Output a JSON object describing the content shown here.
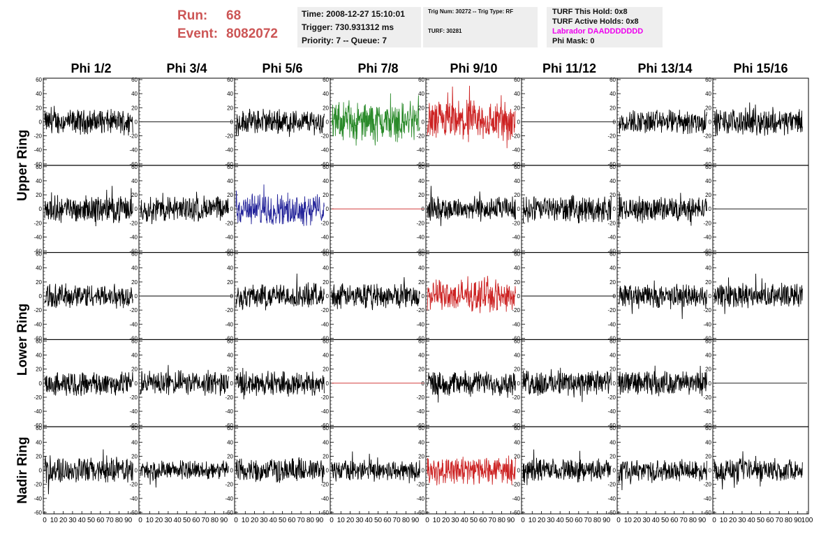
{
  "header": {
    "run_label": "Run:",
    "run_value": "68",
    "event_label": "Event:",
    "event_value": "8082072",
    "time_line": "Time: 2008-12-27 15:10:01",
    "trigger_line": "Trigger: 730.931312 ms",
    "priority_line": "Priority: 7 -- Queue: 7",
    "trig_line": "Trig Num: 30272 -- Trig Type: RF",
    "turf_line": "TURF: 30281",
    "turf_hold_line": "TURF This Hold: 0x8",
    "turf_active_line": "TURF Active Holds: 0x8",
    "labrador_line": "Labrador DAADDDDDDD",
    "phi_mask_line": "Phi Mask: 0"
  },
  "colors": {
    "run_text": "#cc5555",
    "labrador_text": "#ee00ee",
    "info_bg": "#eeeeee",
    "trace_black": "#000000",
    "trace_green": "#2a8a2a",
    "trace_red": "#cc2222",
    "trace_blue": "#222299"
  },
  "chart_data": {
    "type": "line",
    "columns": [
      "Phi 1/2",
      "Phi 3/4",
      "Phi 5/6",
      "Phi 7/8",
      "Phi 9/10",
      "Phi 11/12",
      "Phi 13/14",
      "Phi 15/16"
    ],
    "row_groups": [
      "Upper Ring",
      "Lower Ring",
      "Nadir Ring"
    ],
    "rows": 5,
    "ylim": [
      -60,
      60
    ],
    "y_ticks": [
      -60,
      -40,
      -20,
      0,
      20,
      40,
      60
    ],
    "xlim": [
      0,
      100
    ],
    "x_tick_labels": [
      "0",
      "10",
      "20",
      "30",
      "40",
      "50",
      "60",
      "70",
      "80",
      "90",
      "100"
    ],
    "samples_per_trace": 260,
    "x_max_data": 95,
    "panels": [
      [
        "noise",
        "flat",
        "noise",
        "green",
        "red",
        "flat",
        "noise",
        "noise"
      ],
      [
        "noise",
        "noise",
        "blue",
        "flatred",
        "noise",
        "noise",
        "noise",
        "flat"
      ],
      [
        "noise",
        "flat",
        "noise",
        "noise",
        "red",
        "flat",
        "noise",
        "noise"
      ],
      [
        "noise",
        "noise",
        "noise",
        "flatred",
        "noise",
        "noise",
        "noise",
        "flat"
      ],
      [
        "noise",
        "noise",
        "noise",
        "noise",
        "red",
        "noise",
        "noise",
        "noise"
      ]
    ],
    "amplitudes": [
      [
        14,
        0,
        14,
        22,
        24,
        0,
        14,
        15
      ],
      [
        15,
        15,
        18,
        0,
        14,
        15,
        14,
        0
      ],
      [
        14,
        0,
        14,
        14,
        18,
        0,
        14,
        14
      ],
      [
        14,
        14,
        14,
        0,
        14,
        15,
        14,
        0
      ],
      [
        15,
        11,
        14,
        12,
        16,
        13,
        12,
        13
      ]
    ]
  }
}
